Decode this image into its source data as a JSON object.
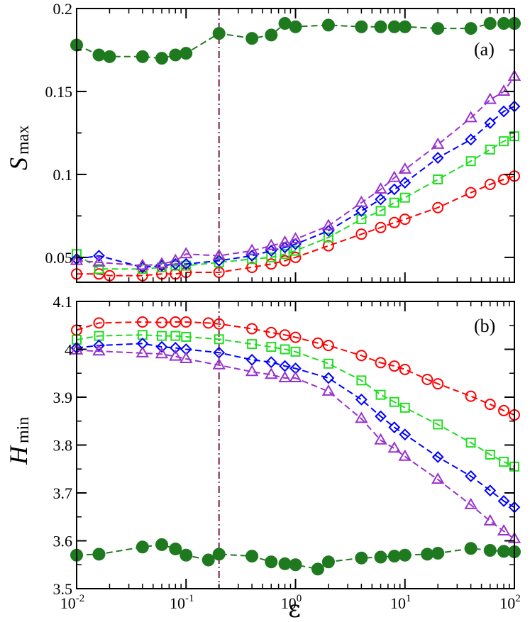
{
  "chart_data": [
    {
      "type": "line",
      "panel_label": "(a)",
      "ylabel": "S",
      "ylabel_sub": "max",
      "xscale": "log",
      "xlim": [
        0.01,
        100
      ],
      "ylim": [
        0.035,
        0.2
      ],
      "yticks": [
        0.05,
        0.1,
        0.15,
        0.2
      ],
      "ytick_labels": [
        "0.05",
        "0.1",
        "0.15",
        "0.2"
      ],
      "vline_x": 0.2,
      "series": [
        {
          "name": "filled-circles",
          "marker": "circle-filled",
          "color": "#1f7a1f",
          "x": [
            0.01,
            0.016,
            0.02,
            0.04,
            0.06,
            0.08,
            0.1,
            0.2,
            0.4,
            0.6,
            0.8,
            1,
            2,
            4,
            6,
            8,
            10,
            20,
            40,
            60,
            80,
            100
          ],
          "values": [
            0.178,
            0.172,
            0.171,
            0.171,
            0.17,
            0.172,
            0.173,
            0.185,
            0.182,
            0.184,
            0.191,
            0.189,
            0.19,
            0.189,
            0.189,
            0.189,
            0.189,
            0.188,
            0.188,
            0.191,
            0.191,
            0.191
          ]
        },
        {
          "name": "circles",
          "marker": "circle",
          "color": "#ff0000",
          "x": [
            0.01,
            0.016,
            0.02,
            0.04,
            0.06,
            0.08,
            0.1,
            0.2,
            0.4,
            0.6,
            0.8,
            1,
            2,
            4,
            6,
            8,
            10,
            20,
            40,
            60,
            80,
            100
          ],
          "values": [
            0.04,
            0.04,
            0.039,
            0.039,
            0.04,
            0.04,
            0.041,
            0.041,
            0.044,
            0.046,
            0.048,
            0.05,
            0.057,
            0.064,
            0.068,
            0.071,
            0.073,
            0.08,
            0.089,
            0.094,
            0.097,
            0.099
          ]
        },
        {
          "name": "squares",
          "marker": "square",
          "color": "#22dd22",
          "x": [
            0.01,
            0.016,
            0.04,
            0.06,
            0.08,
            0.1,
            0.2,
            0.4,
            0.6,
            0.8,
            1,
            2,
            4,
            6,
            8,
            10,
            20,
            40,
            60,
            80,
            100
          ],
          "values": [
            0.052,
            0.043,
            0.043,
            0.044,
            0.045,
            0.045,
            0.047,
            0.049,
            0.05,
            0.052,
            0.054,
            0.062,
            0.073,
            0.078,
            0.083,
            0.086,
            0.097,
            0.108,
            0.115,
            0.12,
            0.123
          ]
        },
        {
          "name": "diamonds",
          "marker": "diamond",
          "color": "#0000ff",
          "x": [
            0.01,
            0.016,
            0.04,
            0.06,
            0.08,
            0.1,
            0.2,
            0.4,
            0.6,
            0.8,
            1,
            2,
            4,
            6,
            8,
            10,
            20,
            40,
            60,
            80,
            100
          ],
          "values": [
            0.049,
            0.051,
            0.044,
            0.045,
            0.046,
            0.046,
            0.048,
            0.051,
            0.054,
            0.056,
            0.058,
            0.066,
            0.078,
            0.085,
            0.091,
            0.095,
            0.11,
            0.121,
            0.131,
            0.138,
            0.141
          ]
        },
        {
          "name": "triangles",
          "marker": "triangle",
          "color": "#9933cc",
          "x": [
            0.01,
            0.016,
            0.04,
            0.06,
            0.08,
            0.1,
            0.2,
            0.4,
            0.6,
            0.8,
            1,
            2,
            4,
            6,
            8,
            10,
            20,
            40,
            60,
            80,
            100
          ],
          "values": [
            0.048,
            0.047,
            0.045,
            0.046,
            0.048,
            0.052,
            0.051,
            0.054,
            0.057,
            0.059,
            0.061,
            0.069,
            0.083,
            0.091,
            0.098,
            0.103,
            0.118,
            0.134,
            0.145,
            0.15,
            0.159
          ]
        }
      ]
    },
    {
      "type": "line",
      "panel_label": "(b)",
      "ylabel": "H",
      "ylabel_sub": "min",
      "xscale": "log",
      "xlim": [
        0.01,
        100
      ],
      "ylim": [
        3.5,
        4.1
      ],
      "yticks": [
        3.5,
        3.6,
        3.7,
        3.8,
        3.9,
        4.0,
        4.1
      ],
      "ytick_labels": [
        "3.5",
        "3.6",
        "3.7",
        "3.8",
        "3.9",
        "4",
        "4.1"
      ],
      "vline_x": 0.2,
      "series": [
        {
          "name": "filled-circles",
          "marker": "circle-filled",
          "color": "#1f7a1f",
          "x": [
            0.01,
            0.016,
            0.04,
            0.06,
            0.08,
            0.1,
            0.16,
            0.2,
            0.4,
            0.6,
            0.8,
            1,
            1.6,
            2,
            4,
            6,
            8,
            10,
            16,
            20,
            40,
            60,
            80,
            100
          ],
          "values": [
            3.57,
            3.572,
            3.587,
            3.592,
            3.583,
            3.57,
            3.56,
            3.572,
            3.568,
            3.556,
            3.552,
            3.55,
            3.541,
            3.556,
            3.564,
            3.566,
            3.568,
            3.57,
            3.572,
            3.574,
            3.584,
            3.58,
            3.578,
            3.577
          ]
        },
        {
          "name": "circles",
          "marker": "circle",
          "color": "#ff0000",
          "x": [
            0.01,
            0.016,
            0.04,
            0.06,
            0.08,
            0.1,
            0.16,
            0.2,
            0.4,
            0.6,
            0.8,
            1,
            1.6,
            2,
            4,
            6,
            8,
            10,
            16,
            20,
            40,
            60,
            80,
            100
          ],
          "values": [
            4.04,
            4.055,
            4.057,
            4.056,
            4.057,
            4.057,
            4.055,
            4.053,
            4.043,
            4.035,
            4.03,
            4.025,
            4.013,
            4.008,
            3.987,
            3.972,
            3.965,
            3.958,
            3.937,
            3.928,
            3.902,
            3.885,
            3.872,
            3.863
          ]
        },
        {
          "name": "squares",
          "marker": "square",
          "color": "#22dd22",
          "x": [
            0.01,
            0.016,
            0.04,
            0.06,
            0.08,
            0.1,
            0.2,
            0.4,
            0.6,
            0.8,
            1,
            2,
            4,
            6,
            8,
            10,
            20,
            40,
            60,
            80,
            100
          ],
          "values": [
            4.02,
            4.028,
            4.03,
            4.028,
            4.028,
            4.026,
            4.021,
            4.011,
            4.005,
            4.0,
            3.995,
            3.97,
            3.935,
            3.905,
            3.89,
            3.878,
            3.843,
            3.805,
            3.78,
            3.765,
            3.755
          ]
        },
        {
          "name": "diamonds",
          "marker": "diamond",
          "color": "#0000ff",
          "x": [
            0.01,
            0.016,
            0.04,
            0.06,
            0.08,
            0.1,
            0.2,
            0.4,
            0.6,
            0.8,
            1,
            2,
            4,
            6,
            8,
            10,
            20,
            40,
            60,
            80,
            100
          ],
          "values": [
            4.003,
            4.008,
            4.012,
            4.005,
            4.003,
            4.0,
            3.993,
            3.978,
            3.973,
            3.965,
            3.96,
            3.94,
            3.895,
            3.86,
            3.837,
            3.822,
            3.775,
            3.735,
            3.705,
            3.683,
            3.67
          ]
        },
        {
          "name": "triangles",
          "marker": "triangle",
          "color": "#9933cc",
          "x": [
            0.01,
            0.016,
            0.04,
            0.06,
            0.08,
            0.1,
            0.2,
            0.4,
            0.6,
            0.8,
            1,
            2,
            4,
            6,
            8,
            10,
            20,
            40,
            60,
            80,
            100
          ],
          "values": [
            3.998,
            3.996,
            3.992,
            3.99,
            3.985,
            3.98,
            3.967,
            3.953,
            3.947,
            3.94,
            3.94,
            3.912,
            3.855,
            3.81,
            3.793,
            3.776,
            3.728,
            3.675,
            3.641,
            3.62,
            3.604
          ]
        }
      ]
    }
  ],
  "xaxis": {
    "label": "ε",
    "tick_values": [
      0.01,
      0.1,
      1,
      10,
      100
    ],
    "tick_bases": [
      "10",
      "10",
      "10",
      "10",
      "10"
    ],
    "tick_exps": [
      "-2",
      "-1",
      "0",
      "1",
      "2"
    ]
  }
}
